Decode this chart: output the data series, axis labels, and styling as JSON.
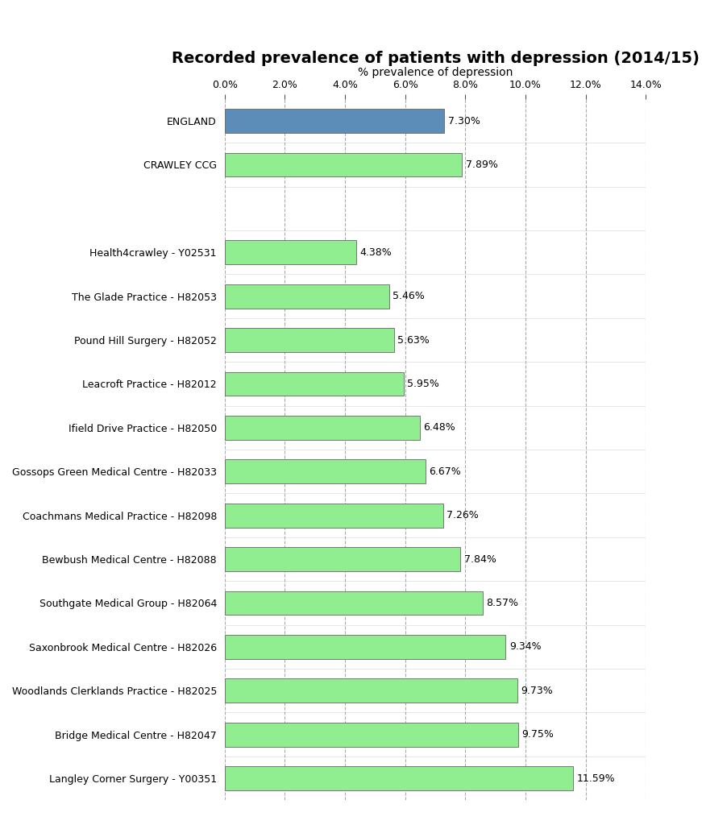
{
  "title": "Recorded prevalence of patients with depression (2014/15)",
  "xlabel": "% prevalence of depression",
  "categories": [
    "ENGLAND",
    "CRAWLEY CCG",
    "",
    "Health4crawley - Y02531",
    "The Glade Practice - H82053",
    "Pound Hill Surgery - H82052",
    "Leacroft Practice - H82012",
    "Ifield Drive Practice - H82050",
    "Gossops Green Medical Centre - H82033",
    "Coachmans Medical Practice - H82098",
    "Bewbush Medical Centre - H82088",
    "Southgate Medical Group - H82064",
    "Saxonbrook Medical Centre - H82026",
    "Woodlands Clerklands Practice - H82025",
    "Bridge Medical Centre - H82047",
    "Langley Corner Surgery - Y00351"
  ],
  "values": [
    7.3,
    7.89,
    0,
    4.38,
    5.46,
    5.63,
    5.95,
    6.48,
    6.67,
    7.26,
    7.84,
    8.57,
    9.34,
    9.73,
    9.75,
    11.59
  ],
  "bar_colors": [
    "#5b8db8",
    "#90ee90",
    "#ffffff",
    "#90ee90",
    "#90ee90",
    "#90ee90",
    "#90ee90",
    "#90ee90",
    "#90ee90",
    "#90ee90",
    "#90ee90",
    "#90ee90",
    "#90ee90",
    "#90ee90",
    "#90ee90",
    "#90ee90"
  ],
  "labels": [
    "7.30%",
    "7.89%",
    "",
    "4.38%",
    "5.46%",
    "5.63%",
    "5.95%",
    "6.48%",
    "6.67%",
    "7.26%",
    "7.84%",
    "8.57%",
    "9.34%",
    "9.73%",
    "9.75%",
    "11.59%"
  ],
  "xlim": [
    0,
    14.0
  ],
  "xticks": [
    0,
    2,
    4,
    6,
    8,
    10,
    12,
    14
  ],
  "xtick_labels": [
    "0.0%",
    "2.0%",
    "4.0%",
    "6.0%",
    "8.0%",
    "10.0%",
    "12.0%",
    "14.0%"
  ],
  "title_fontsize": 14,
  "xlabel_fontsize": 10,
  "tick_fontsize": 9,
  "label_fontsize": 9,
  "bar_edge_color": "#666666",
  "grid_color": "#aaaaaa",
  "background_color": "#ffffff"
}
